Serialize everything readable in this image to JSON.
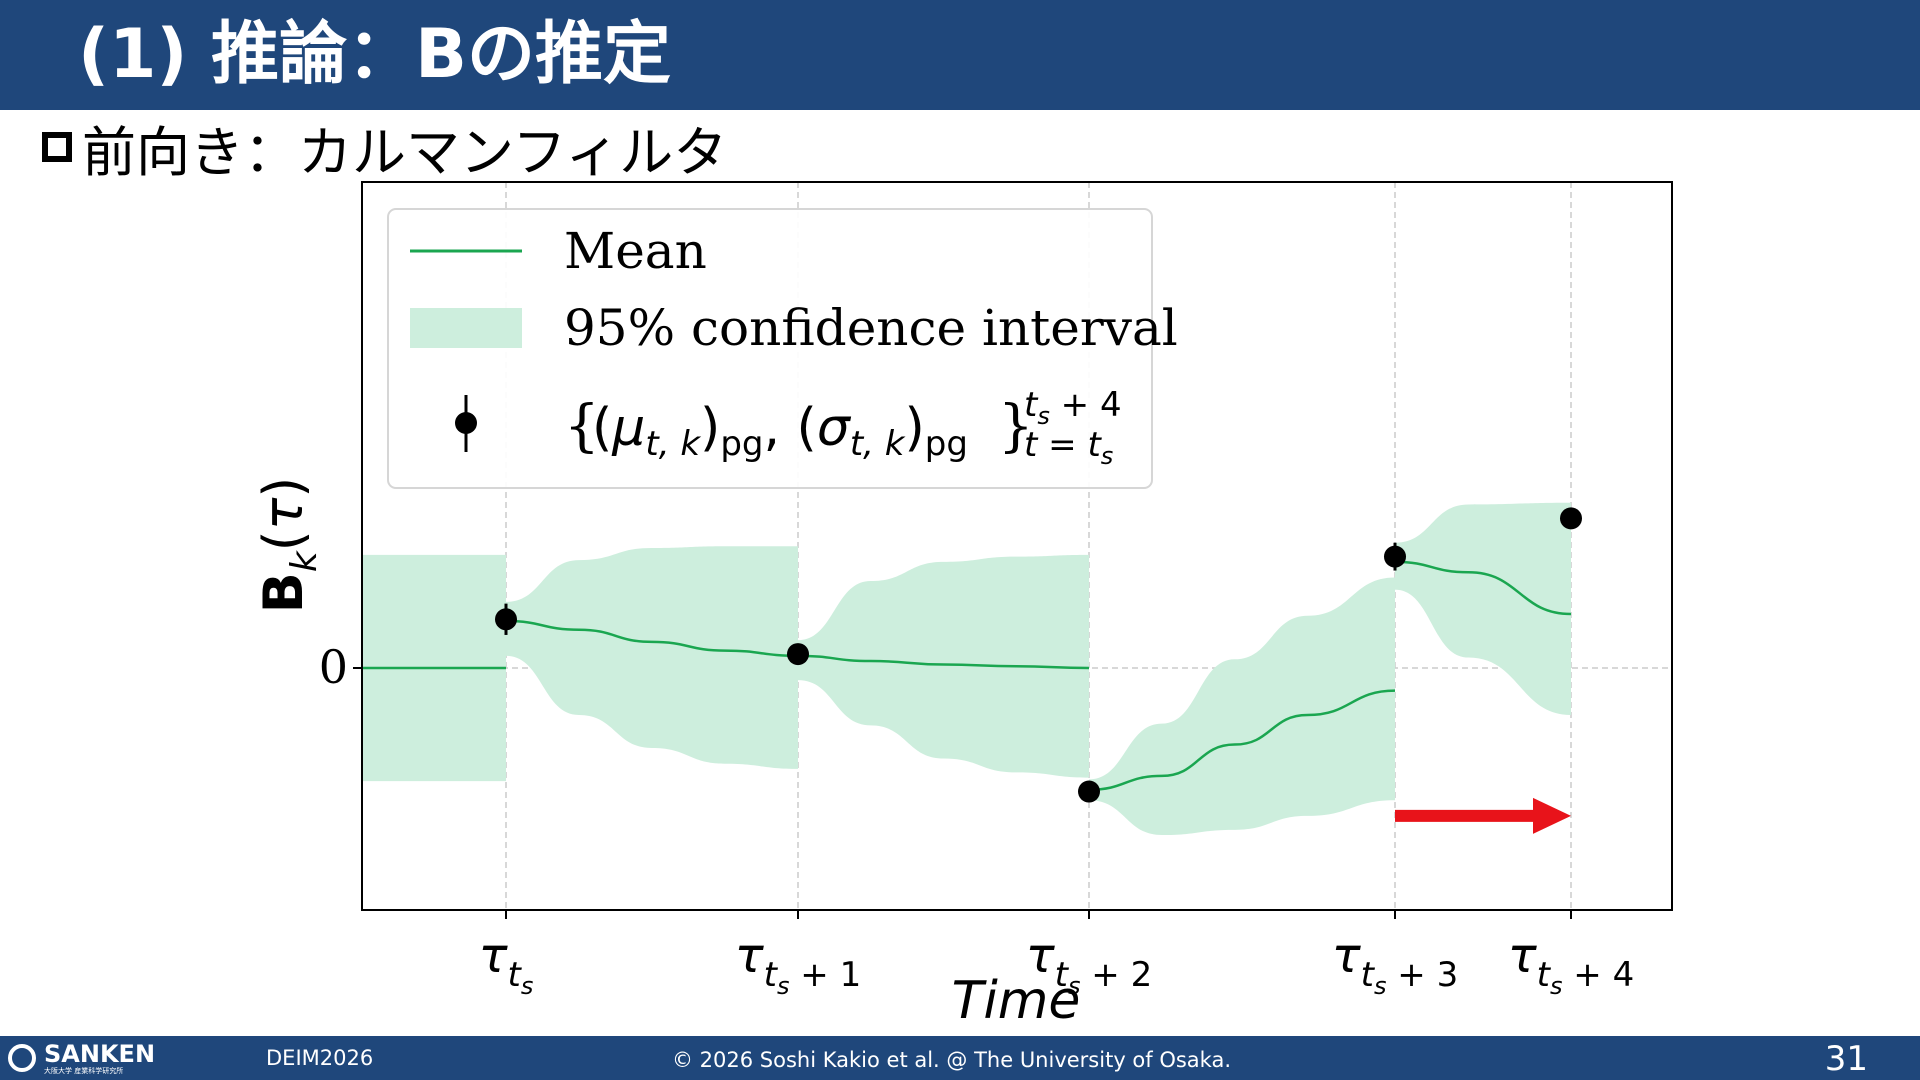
{
  "slide": {
    "title": "(1) 推論：Bの推定",
    "subtitle": "前向き：カルマンフィルタ"
  },
  "chart_data": {
    "type": "line",
    "xlabel": "Time",
    "ylabel": "Bk(τ)",
    "x_ticks": [
      "τts",
      "τts+1",
      "τts+2",
      "τts+3",
      "τts+4"
    ],
    "y_ticks": [
      "0"
    ],
    "grid": true,
    "legend_position": "top-left",
    "legend": {
      "mean_label": "Mean",
      "ci_label": "95% confidence interval",
      "obs_label": "{(μt,k)pg, (σt,k)pg} t=ts .. ts+4"
    },
    "series": [
      {
        "name": "Mean",
        "color": "#1aa650",
        "x": [
          -0.5,
          0,
          0,
          0.25,
          0.5,
          0.75,
          1,
          1.25,
          1.5,
          1.75,
          2,
          2,
          2.25,
          2.5,
          2.75,
          3.05,
          3.05,
          3.3,
          3.65
        ],
        "y": [
          0,
          0,
          0.27,
          0.22,
          0.15,
          0.1,
          0.07,
          0.04,
          0.02,
          0.01,
          0.0,
          -0.7,
          -0.62,
          -0.44,
          -0.27,
          -0.13,
          0.61,
          0.55,
          0.31
        ]
      },
      {
        "name": "95% confidence interval",
        "color": "#cdeedd",
        "x": [
          -0.5,
          0,
          0,
          0.25,
          0.5,
          0.75,
          1,
          1,
          1.25,
          1.5,
          1.75,
          2,
          2,
          2.25,
          2.5,
          2.75,
          3.05,
          3.05,
          3.3,
          3.65
        ],
        "upper": [
          0.65,
          0.65,
          0.38,
          0.62,
          0.69,
          0.7,
          0.7,
          0.16,
          0.5,
          0.61,
          0.64,
          0.65,
          -0.64,
          -0.32,
          0.05,
          0.3,
          0.52,
          0.72,
          0.94,
          0.95
        ],
        "lower": [
          -0.65,
          -0.65,
          0.07,
          -0.27,
          -0.46,
          -0.55,
          -0.58,
          -0.07,
          -0.33,
          -0.52,
          -0.6,
          -0.63,
          -0.76,
          -0.96,
          -0.93,
          -0.85,
          -0.76,
          0.45,
          0.06,
          -0.27
        ]
      },
      {
        "name": "observations",
        "color": "#000000",
        "x": [
          0,
          1,
          2,
          3.05,
          3.65
        ],
        "y": [
          0.28,
          0.08,
          -0.71,
          0.64,
          0.86
        ],
        "err": [
          0.09,
          0.05,
          0.04,
          0.08,
          0.06
        ]
      }
    ],
    "ylim": [
      -1.0,
      2.0
    ],
    "xlim": [
      -0.5,
      3.85
    ],
    "arrow": {
      "x_from": 3.05,
      "x_to": 3.65,
      "y": -0.85,
      "color": "#e8131a"
    }
  },
  "footer": {
    "logo_text": "SANKEN",
    "logo_sub": "大阪大学 産業科学研究所",
    "conference": "DEIM2026",
    "copyright": "© 2026 Soshi Kakio et al. @ The University of Osaka.",
    "page_number": "31"
  }
}
